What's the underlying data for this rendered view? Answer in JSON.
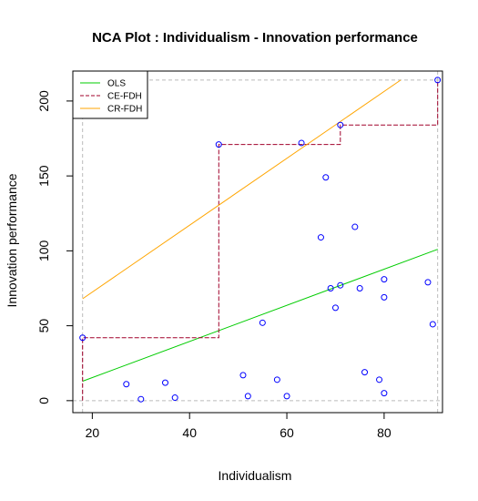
{
  "chart_data": {
    "type": "scatter",
    "title": "NCA Plot : Individualism - Innovation performance",
    "xlabel": "Individualism",
    "ylabel": "Innovation performance",
    "xlim": [
      16,
      92
    ],
    "ylim": [
      -8,
      220
    ],
    "xticks": [
      20,
      40,
      60,
      80
    ],
    "yticks": [
      0,
      50,
      100,
      150,
      200
    ],
    "xtick_labels": [
      "20",
      "40",
      "60",
      "80"
    ],
    "ytick_labels": [
      "0",
      "50",
      "100",
      "150",
      "200"
    ],
    "points": [
      {
        "x": 18,
        "y": 42
      },
      {
        "x": 27,
        "y": 11
      },
      {
        "x": 30,
        "y": 1
      },
      {
        "x": 35,
        "y": 12
      },
      {
        "x": 37,
        "y": 2
      },
      {
        "x": 46,
        "y": 171
      },
      {
        "x": 51,
        "y": 17
      },
      {
        "x": 52,
        "y": 3
      },
      {
        "x": 55,
        "y": 52
      },
      {
        "x": 58,
        "y": 14
      },
      {
        "x": 60,
        "y": 3
      },
      {
        "x": 63,
        "y": 172
      },
      {
        "x": 67,
        "y": 109
      },
      {
        "x": 68,
        "y": 149
      },
      {
        "x": 69,
        "y": 75
      },
      {
        "x": 70,
        "y": 62
      },
      {
        "x": 71,
        "y": 77
      },
      {
        "x": 71,
        "y": 184
      },
      {
        "x": 74,
        "y": 116
      },
      {
        "x": 75,
        "y": 75
      },
      {
        "x": 76,
        "y": 19
      },
      {
        "x": 79,
        "y": 14
      },
      {
        "x": 80,
        "y": 81
      },
      {
        "x": 80,
        "y": 69
      },
      {
        "x": 80,
        "y": 5
      },
      {
        "x": 89,
        "y": 79
      },
      {
        "x": 90,
        "y": 51
      },
      {
        "x": 91,
        "y": 214
      }
    ],
    "point_color": "#0000ff",
    "series": [
      {
        "name": "OLS",
        "color": "#00cc00",
        "style": "solid",
        "x": [
          18,
          91
        ],
        "y": [
          13,
          101
        ]
      },
      {
        "name": "CE-FDH",
        "color": "#a0002a",
        "style": "dashed",
        "x": [
          18,
          18,
          46,
          46,
          71,
          71,
          91,
          91
        ],
        "y": [
          0,
          42,
          42,
          171,
          171,
          184,
          184,
          214
        ]
      },
      {
        "name": "CR-FDH",
        "color": "#ffa500",
        "style": "solid",
        "x": [
          18,
          83.4
        ],
        "y": [
          68,
          214
        ]
      }
    ],
    "scope": {
      "xmin": 18,
      "xmax": 91,
      "ymin": 0,
      "ymax": 214,
      "color": "#bbbbbb"
    },
    "legend": {
      "placement": "top-left",
      "entries": [
        {
          "label": "OLS",
          "color": "#00cc00",
          "style": "solid"
        },
        {
          "label": "CE-FDH",
          "color": "#a0002a",
          "style": "dashed"
        },
        {
          "label": "CR-FDH",
          "color": "#ffa500",
          "style": "solid"
        }
      ]
    }
  }
}
